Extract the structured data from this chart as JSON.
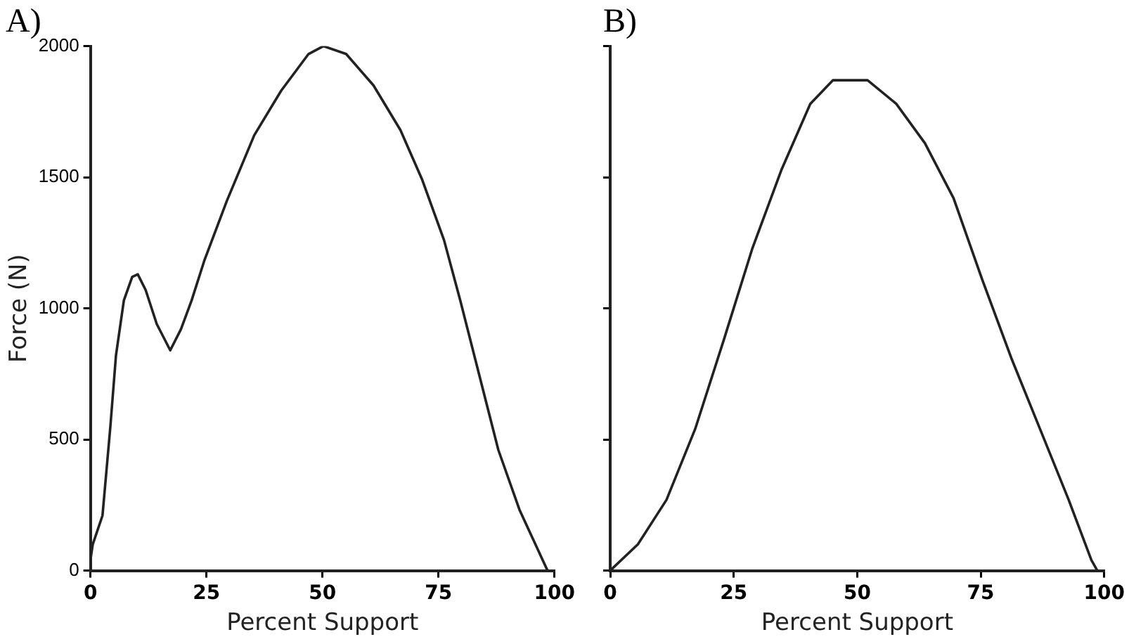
{
  "chart_data": [
    {
      "type": "line",
      "title": "A)",
      "xlabel": "Percent Support",
      "ylabel": "Force (N)",
      "xlim": [
        0,
        100
      ],
      "xticks": [
        0,
        25,
        50,
        75,
        100
      ],
      "ylim": [
        0,
        2000
      ],
      "yticks": [
        0,
        500,
        1000,
        1500,
        2000
      ],
      "grid": false,
      "legend": false,
      "marker": "none",
      "series": [
        {
          "color": "#222222",
          "x": [
            0,
            0.5,
            2.6,
            4.3,
            5.5,
            7.2,
            9,
            10.2,
            11.9,
            14.3,
            17.2,
            19.5,
            21.8,
            24.5,
            29.4,
            35.3,
            41.1,
            47,
            50.2,
            55.1,
            61,
            66.8,
            71.5,
            76.2,
            79.7,
            84.3,
            87.9,
            92.5,
            97.2,
            98.5
          ],
          "values": [
            40,
            100,
            210,
            550,
            820,
            1030,
            1120,
            1130,
            1070,
            940,
            840,
            920,
            1030,
            1180,
            1410,
            1660,
            1830,
            1970,
            2000,
            1970,
            1850,
            1680,
            1490,
            1260,
            1030,
            710,
            460,
            230,
            50,
            0
          ]
        }
      ]
    },
    {
      "type": "line",
      "title": "B)",
      "xlabel": "Percent Support",
      "xlim": [
        0,
        100
      ],
      "xticks": [
        0,
        25,
        50,
        75,
        100
      ],
      "ylim": [
        0,
        2000
      ],
      "yticks": [
        {
          "value": 0,
          "label": null
        },
        {
          "value": 500,
          "label": null
        },
        {
          "value": 1000,
          "label": null
        },
        {
          "value": 1500,
          "label": null
        },
        {
          "value": 2000,
          "label": null
        }
      ],
      "tick_labels": "x",
      "grid": false,
      "legend": false,
      "marker": "none",
      "series": [
        {
          "color": "#222222",
          "x": [
            0,
            5.6,
            11.4,
            17.2,
            23,
            28.8,
            34.7,
            40.5,
            45.1,
            52.1,
            57.9,
            63.7,
            69.5,
            75.3,
            81.2,
            87,
            92.8,
            97.4,
            98.6
          ],
          "values": [
            0,
            100,
            270,
            540,
            880,
            1230,
            1530,
            1780,
            1870,
            1870,
            1780,
            1630,
            1420,
            1110,
            810,
            540,
            270,
            40,
            0
          ]
        }
      ]
    }
  ]
}
